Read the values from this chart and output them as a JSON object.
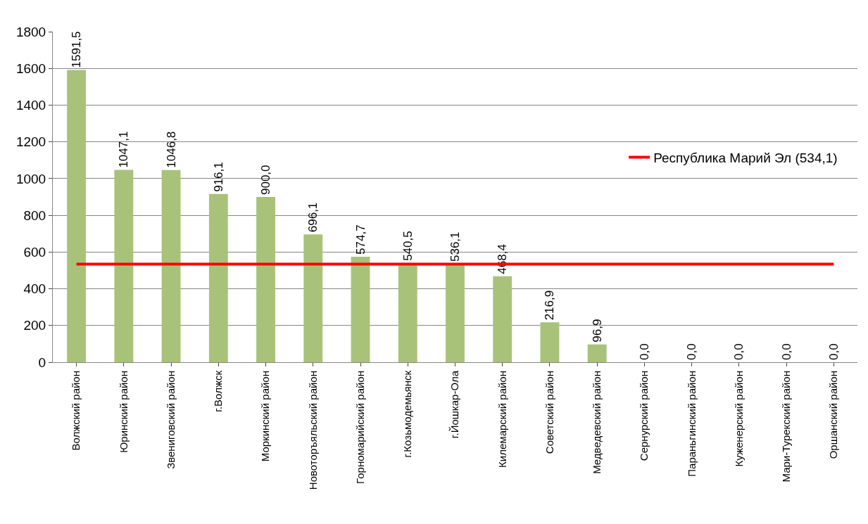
{
  "chart_data": {
    "type": "bar",
    "categories": [
      "Волжский район",
      "Юринский район",
      "Звениговский район",
      "г.Волжск",
      "Моркинский район",
      "Новоторъяльский район",
      "Горномарийский район",
      "г.Козьмодемьянск",
      "г.Йошкар-Ола",
      "Килемарский район",
      "Советский район",
      "Медведевский район",
      "Сернурский район",
      "Параньгинский район",
      "Куженерский район",
      "Мари-Турекский район",
      "Оршанский район"
    ],
    "series": [
      {
        "color": "#a9c27a",
        "values": [
          1591.5,
          1047.1,
          1046.8,
          916.1,
          900.0,
          696.1,
          574.7,
          540.5,
          536.1,
          468.4,
          216.9,
          96.9,
          0.0,
          0.0,
          0.0,
          0.0,
          0.0
        ],
        "value_labels": [
          "1591,5",
          "1047,1",
          "1046,8",
          "916,1",
          "900,0",
          "696,1",
          "574,7",
          "540,5",
          "536,1",
          "468,4",
          "216,9",
          "96,9",
          "0,0",
          "0,0",
          "0,0",
          "0,0",
          "0,0"
        ]
      },
      {
        "type": "line",
        "name": "Республика Марий Эл (534,1)",
        "color": "#ff0000",
        "values": [
          534.1,
          534.1,
          534.1,
          534.1,
          534.1,
          534.1,
          534.1,
          534.1,
          534.1,
          534.1,
          534.1,
          534.1,
          534.1,
          534.1,
          534.1,
          534.1,
          534.1
        ]
      }
    ],
    "ylim": [
      0,
      1800
    ],
    "yticks": [
      0,
      200,
      400,
      600,
      800,
      1000,
      1200,
      1400,
      1600,
      1800
    ],
    "grid": "y",
    "legend": "right",
    "marker": "none",
    "line_style": "solid"
  }
}
